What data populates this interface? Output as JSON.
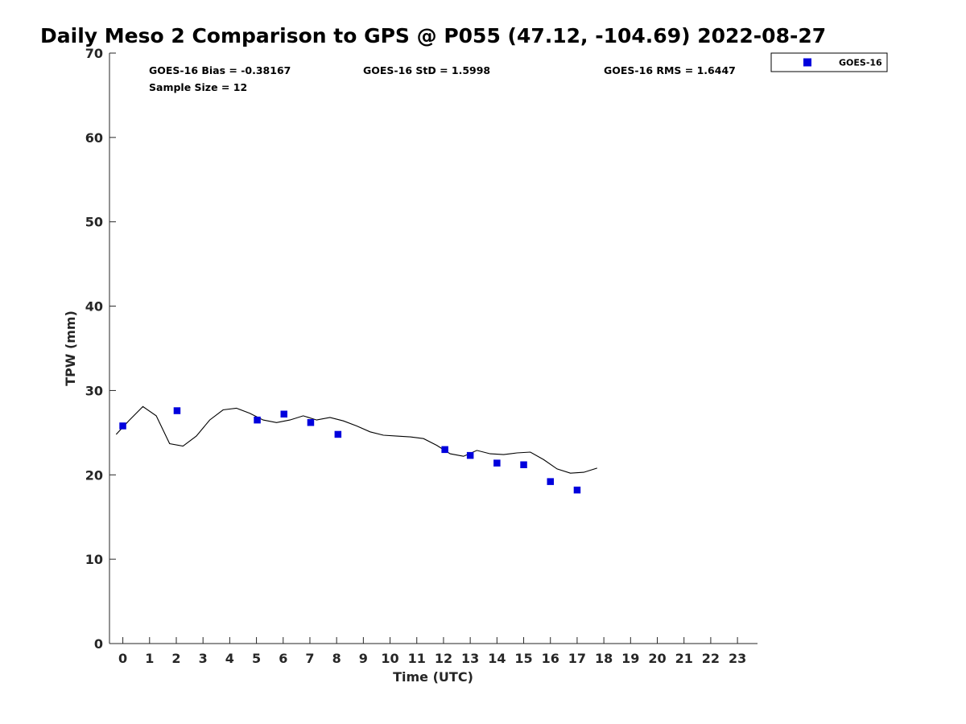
{
  "chart_data": {
    "type": "scatter",
    "title": "Daily Meso 2 Comparison to GPS @ P055 (47.12, -104.69) 2022-08-27",
    "xlabel": "Time (UTC)",
    "ylabel": "TPW (mm)",
    "xlim": [
      -0.5,
      23.75
    ],
    "ylim": [
      0,
      70
    ],
    "x_ticks": [
      "0",
      "1",
      "2",
      "3",
      "4",
      "5",
      "6",
      "7",
      "8",
      "9",
      "10",
      "11",
      "12",
      "13",
      "14",
      "15",
      "16",
      "17",
      "18",
      "19",
      "20",
      "21",
      "22",
      "23"
    ],
    "y_ticks": [
      "0",
      "10",
      "20",
      "30",
      "40",
      "50",
      "60",
      "70"
    ],
    "grid": false,
    "legend": {
      "placement": "outside-top-right",
      "entries": [
        "GOES-16"
      ]
    },
    "annotations": {
      "bias": "GOES-16 Bias = -0.38167",
      "std": "GOES-16 StD = 1.5998",
      "rms": "GOES-16 RMS = 1.6447",
      "sample_size": "Sample Size = 12"
    },
    "series": [
      {
        "name": "GOES-16",
        "marker": "square",
        "color": "#0000dd",
        "x": [
          0.0,
          2.03,
          5.03,
          6.03,
          7.03,
          8.05,
          12.05,
          13.0,
          14.0,
          15.0,
          16.0,
          17.0
        ],
        "y": [
          25.8,
          27.6,
          26.5,
          27.2,
          26.2,
          24.8,
          23.0,
          22.3,
          21.4,
          21.2,
          19.2,
          18.2
        ]
      },
      {
        "marker": "line",
        "color": "#000000",
        "x": [
          -0.25,
          0.25,
          0.75,
          1.25,
          1.75,
          2.25,
          2.75,
          3.25,
          3.75,
          4.25,
          4.75,
          5.25,
          5.75,
          6.25,
          6.75,
          7.25,
          7.75,
          8.25,
          8.75,
          9.25,
          9.75,
          10.25,
          10.75,
          11.25,
          11.75,
          12.25,
          12.75,
          13.25,
          13.75,
          14.25,
          14.75,
          15.25,
          15.75,
          16.25,
          16.75,
          17.25,
          17.75
        ],
        "y": [
          24.8,
          26.5,
          28.1,
          27.0,
          23.7,
          23.4,
          24.6,
          26.5,
          27.7,
          27.9,
          27.3,
          26.5,
          26.2,
          26.5,
          27.0,
          26.5,
          26.8,
          26.4,
          25.8,
          25.1,
          24.7,
          24.6,
          24.5,
          24.3,
          23.5,
          22.5,
          22.2,
          22.9,
          22.5,
          22.4,
          22.6,
          22.7,
          21.8,
          20.7,
          20.2,
          20.3,
          20.8
        ]
      }
    ]
  }
}
